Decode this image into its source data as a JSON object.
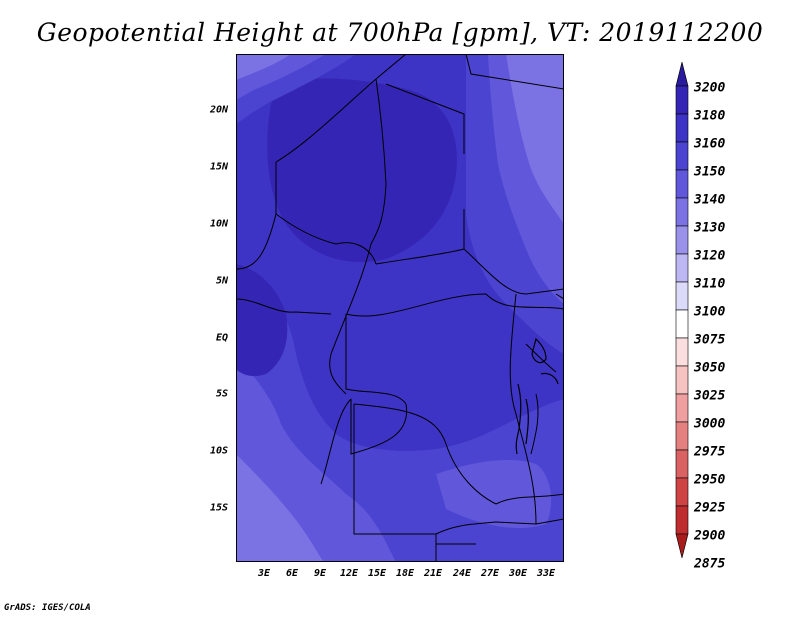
{
  "title": "Geopotential Height at 700hPa [gpm], VT: 2019112200",
  "footer": "GrADS: IGES/COLA",
  "map": {
    "lat_labels": [
      "20N",
      "15N",
      "10N",
      "5N",
      "EQ",
      "5S",
      "10S",
      "15S"
    ],
    "lon_labels": [
      "3E",
      "6E",
      "9E",
      "12E",
      "15E",
      "18E",
      "21E",
      "24E",
      "27E",
      "30E",
      "33E"
    ],
    "field_colors": {
      "c3180": "#3525b5",
      "c3160": "#3d33c4",
      "c3150": "#4a44d0",
      "c3140": "#6157db",
      "c3130": "#7b72e3",
      "border": "#000000"
    }
  },
  "colorbar": {
    "levels": [
      {
        "label": "3200",
        "color": "#2a1a9c"
      },
      {
        "label": "3180",
        "color": "#3525b5"
      },
      {
        "label": "3160",
        "color": "#3d33c4"
      },
      {
        "label": "3150",
        "color": "#4a44d0"
      },
      {
        "label": "3140",
        "color": "#6157db"
      },
      {
        "label": "3130",
        "color": "#7b72e3"
      },
      {
        "label": "3120",
        "color": "#9a92ea"
      },
      {
        "label": "3110",
        "color": "#bdb8f3"
      },
      {
        "label": "3100",
        "color": "#dcdaf9"
      },
      {
        "label": "3075",
        "color": "#ffffff"
      },
      {
        "label": "3050",
        "color": "#fbdede"
      },
      {
        "label": "3025",
        "color": "#f6c2c2"
      },
      {
        "label": "3000",
        "color": "#ef9f9f"
      },
      {
        "label": "2975",
        "color": "#e48080"
      },
      {
        "label": "2950",
        "color": "#d96262"
      },
      {
        "label": "2925",
        "color": "#ce4444"
      },
      {
        "label": "2900",
        "color": "#bf2e2e"
      },
      {
        "label": "2875",
        "color": "#a81c1c"
      }
    ]
  }
}
